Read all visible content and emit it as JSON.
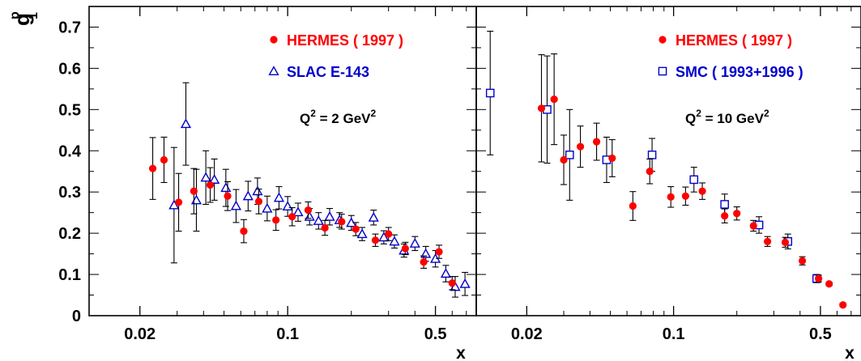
{
  "figure": {
    "y_axis_title": "g",
    "y_axis_title_sub": "1",
    "y_axis_title_sup": "p",
    "x_axis_title": "x",
    "colors": {
      "hermes": "#ff0000",
      "other": "#0000cc",
      "errorbars": "#000000",
      "axes": "#000000",
      "text": "#000000"
    }
  },
  "chart_data": [
    {
      "type": "scatter",
      "title": "",
      "xlabel": "x",
      "ylabel": "g1p",
      "xscale": "log",
      "xlim": [
        0.0115,
        0.78
      ],
      "ylim": [
        0,
        0.75
      ],
      "x_ticks": [
        {
          "value": 0.02,
          "label": "0.02"
        },
        {
          "value": 0.1,
          "label": "0.1"
        },
        {
          "value": 0.5,
          "label": "0.5"
        }
      ],
      "y_ticks": [
        {
          "value": 0,
          "label": "0"
        },
        {
          "value": 0.1,
          "label": "0.1"
        },
        {
          "value": 0.2,
          "label": "0.2"
        },
        {
          "value": 0.3,
          "label": "0.3"
        },
        {
          "value": 0.4,
          "label": "0.4"
        },
        {
          "value": 0.5,
          "label": "0.5"
        },
        {
          "value": 0.6,
          "label": "0.6"
        },
        {
          "value": 0.7,
          "label": "0.7"
        }
      ],
      "annotation": {
        "q": "Q",
        "q_exp": "2",
        "eq": " = 2 GeV",
        "unit_exp": "2"
      },
      "legend_position": "top-right",
      "series": [
        {
          "name": "HERMES ( 1997 )",
          "marker": "circle",
          "color": "#ff0000",
          "points": [
            {
              "x": 0.023,
              "y": 0.357,
              "err": 0.075
            },
            {
              "x": 0.026,
              "y": 0.378,
              "err": 0.055
            },
            {
              "x": 0.0305,
              "y": 0.275,
              "err": 0.07
            },
            {
              "x": 0.036,
              "y": 0.302,
              "err": 0.055
            },
            {
              "x": 0.043,
              "y": 0.317,
              "err": 0.042
            },
            {
              "x": 0.052,
              "y": 0.29,
              "err": 0.035
            },
            {
              "x": 0.062,
              "y": 0.205,
              "err": 0.028
            },
            {
              "x": 0.073,
              "y": 0.277,
              "err": 0.03
            },
            {
              "x": 0.088,
              "y": 0.232,
              "err": 0.025
            },
            {
              "x": 0.105,
              "y": 0.24,
              "err": 0.022
            },
            {
              "x": 0.125,
              "y": 0.256,
              "err": 0.02
            },
            {
              "x": 0.15,
              "y": 0.213,
              "err": 0.018
            },
            {
              "x": 0.18,
              "y": 0.228,
              "err": 0.018
            },
            {
              "x": 0.21,
              "y": 0.21,
              "err": 0.016
            },
            {
              "x": 0.26,
              "y": 0.183,
              "err": 0.015
            },
            {
              "x": 0.3,
              "y": 0.198,
              "err": 0.016
            },
            {
              "x": 0.36,
              "y": 0.163,
              "err": 0.015
            },
            {
              "x": 0.44,
              "y": 0.13,
              "err": 0.015
            },
            {
              "x": 0.52,
              "y": 0.155,
              "err": 0.016
            },
            {
              "x": 0.6,
              "y": 0.079,
              "err": 0.016
            }
          ]
        },
        {
          "name": "SLAC E-143",
          "marker": "triangle",
          "color": "#0000cc",
          "points": [
            {
              "x": 0.029,
              "y": 0.268,
              "err": 0.14
            },
            {
              "x": 0.033,
              "y": 0.465,
              "err": 0.1
            },
            {
              "x": 0.037,
              "y": 0.28,
              "err": 0.075
            },
            {
              "x": 0.041,
              "y": 0.335,
              "err": 0.065
            },
            {
              "x": 0.045,
              "y": 0.33,
              "err": 0.05
            },
            {
              "x": 0.051,
              "y": 0.31,
              "err": 0.045
            },
            {
              "x": 0.057,
              "y": 0.266,
              "err": 0.04
            },
            {
              "x": 0.065,
              "y": 0.29,
              "err": 0.036
            },
            {
              "x": 0.072,
              "y": 0.302,
              "err": 0.032
            },
            {
              "x": 0.08,
              "y": 0.26,
              "err": 0.03
            },
            {
              "x": 0.091,
              "y": 0.286,
              "err": 0.027
            },
            {
              "x": 0.1,
              "y": 0.265,
              "err": 0.024
            },
            {
              "x": 0.112,
              "y": 0.251,
              "err": 0.022
            },
            {
              "x": 0.127,
              "y": 0.24,
              "err": 0.02
            },
            {
              "x": 0.14,
              "y": 0.23,
              "err": 0.02
            },
            {
              "x": 0.158,
              "y": 0.24,
              "err": 0.02
            },
            {
              "x": 0.176,
              "y": 0.232,
              "err": 0.018
            },
            {
              "x": 0.2,
              "y": 0.225,
              "err": 0.018
            },
            {
              "x": 0.225,
              "y": 0.198,
              "err": 0.016
            },
            {
              "x": 0.255,
              "y": 0.238,
              "err": 0.018
            },
            {
              "x": 0.285,
              "y": 0.19,
              "err": 0.016
            },
            {
              "x": 0.32,
              "y": 0.18,
              "err": 0.016
            },
            {
              "x": 0.355,
              "y": 0.158,
              "err": 0.016
            },
            {
              "x": 0.4,
              "y": 0.175,
              "err": 0.017
            },
            {
              "x": 0.45,
              "y": 0.15,
              "err": 0.018
            },
            {
              "x": 0.5,
              "y": 0.138,
              "err": 0.02
            },
            {
              "x": 0.56,
              "y": 0.102,
              "err": 0.02
            },
            {
              "x": 0.62,
              "y": 0.07,
              "err": 0.025
            },
            {
              "x": 0.69,
              "y": 0.077,
              "err": 0.028
            }
          ]
        }
      ]
    },
    {
      "type": "scatter",
      "title": "",
      "xlabel": "x",
      "ylabel": "g1p",
      "xscale": "log",
      "xlim": [
        0.0115,
        0.78
      ],
      "ylim": [
        0,
        0.75
      ],
      "x_ticks": [
        {
          "value": 0.02,
          "label": "0.02"
        },
        {
          "value": 0.1,
          "label": "0.1"
        },
        {
          "value": 0.5,
          "label": "0.5"
        }
      ],
      "y_ticks": [],
      "annotation": {
        "q": "Q",
        "q_exp": "2",
        "eq": " = 10 GeV",
        "unit_exp": "2"
      },
      "legend_position": "top-right",
      "series": [
        {
          "name": "HERMES ( 1997 )",
          "marker": "circle",
          "color": "#ff0000",
          "points": [
            {
              "x": 0.0235,
              "y": 0.503,
              "err": 0.13
            },
            {
              "x": 0.027,
              "y": 0.525,
              "err": 0.11
            },
            {
              "x": 0.03,
              "y": 0.378,
              "err": 0.06
            },
            {
              "x": 0.036,
              "y": 0.41,
              "err": 0.05
            },
            {
              "x": 0.043,
              "y": 0.422,
              "err": 0.045
            },
            {
              "x": 0.051,
              "y": 0.382,
              "err": 0.045
            },
            {
              "x": 0.064,
              "y": 0.266,
              "err": 0.035
            },
            {
              "x": 0.077,
              "y": 0.35,
              "err": 0.03
            },
            {
              "x": 0.097,
              "y": 0.288,
              "err": 0.025
            },
            {
              "x": 0.114,
              "y": 0.29,
              "err": 0.022
            },
            {
              "x": 0.137,
              "y": 0.302,
              "err": 0.02
            },
            {
              "x": 0.175,
              "y": 0.242,
              "err": 0.017
            },
            {
              "x": 0.2,
              "y": 0.248,
              "err": 0.016
            },
            {
              "x": 0.24,
              "y": 0.218,
              "err": 0.013
            },
            {
              "x": 0.28,
              "y": 0.18,
              "err": 0.012
            },
            {
              "x": 0.34,
              "y": 0.178,
              "err": 0.012
            },
            {
              "x": 0.41,
              "y": 0.133,
              "err": 0.01
            },
            {
              "x": 0.49,
              "y": 0.09,
              "err": 0.008
            },
            {
              "x": 0.55,
              "y": 0.077,
              "err": 0.004
            },
            {
              "x": 0.64,
              "y": 0.026,
              "err": 0.004
            }
          ]
        },
        {
          "name": "SMC ( 1993+1996 )",
          "marker": "square",
          "color": "#0000cc",
          "points": [
            {
              "x": 0.0134,
              "y": 0.54,
              "err": 0.15
            },
            {
              "x": 0.025,
              "y": 0.5,
              "err": 0.13
            },
            {
              "x": 0.032,
              "y": 0.39,
              "err": 0.11
            },
            {
              "x": 0.048,
              "y": 0.378,
              "err": 0.055
            },
            {
              "x": 0.079,
              "y": 0.39,
              "err": 0.04
            },
            {
              "x": 0.125,
              "y": 0.33,
              "err": 0.03
            },
            {
              "x": 0.175,
              "y": 0.27,
              "err": 0.025
            },
            {
              "x": 0.255,
              "y": 0.22,
              "err": 0.02
            },
            {
              "x": 0.35,
              "y": 0.18,
              "err": 0.018
            },
            {
              "x": 0.48,
              "y": 0.09,
              "err": 0.01
            }
          ]
        }
      ]
    }
  ]
}
